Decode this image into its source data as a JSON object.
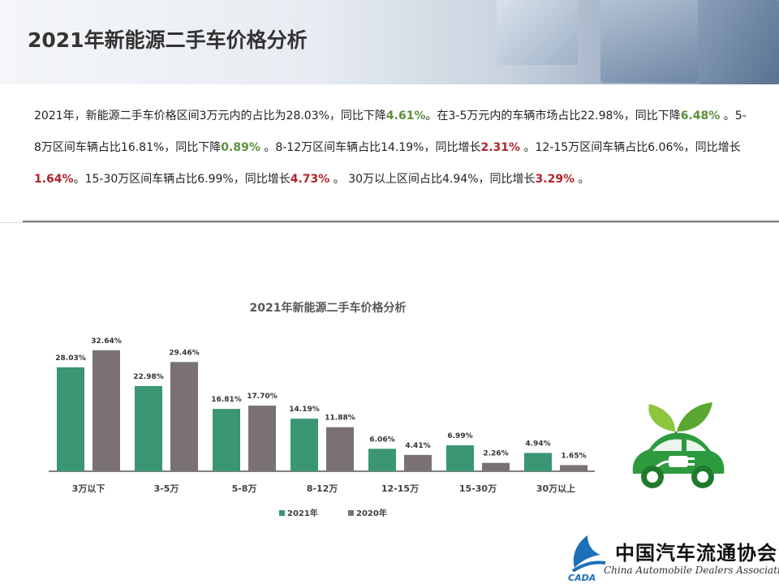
{
  "header": {
    "title": "2021年新能源二手车价格分析"
  },
  "description": [
    {
      "t": "2021年，新能源二手车价格区间3万元内的占比为28.03%，同比下降",
      "c": ""
    },
    {
      "t": "4.61%",
      "c": "g"
    },
    {
      "t": "。在3-5万元内的车辆市场占比22.98%，同比下降",
      "c": ""
    },
    {
      "t": "6.48%",
      "c": "g"
    },
    {
      "t": " 。5-8万区间车辆占比16.81%，同比下降",
      "c": ""
    },
    {
      "t": "0.89%",
      "c": "g"
    },
    {
      "t": " 。8-12万区间车辆占比14.19%，同比增长",
      "c": ""
    },
    {
      "t": "2.31%",
      "c": "r"
    },
    {
      "t": " 。12-15万区间车辆占比6.06%，同比增长",
      "c": ""
    },
    {
      "t": "1.64%",
      "c": "r"
    },
    {
      "t": "。15-30万区间车辆占比6.99%，同比增长",
      "c": ""
    },
    {
      "t": "4.73%",
      "c": "r"
    },
    {
      "t": " 。 30万以上区间占比4.94%，同比增长",
      "c": ""
    },
    {
      "t": "3.29%",
      "c": "r"
    },
    {
      "t": " 。",
      "c": ""
    }
  ],
  "chart_data": {
    "type": "bar",
    "title": "2021年新能源二手车价格分析",
    "categories": [
      "3万以下",
      "3-5万",
      "5-8万",
      "8-12万",
      "12-15万",
      "15-30万",
      "30万以上"
    ],
    "series": [
      {
        "name": "2021年",
        "color": "#3a9673",
        "values": [
          28.03,
          22.98,
          16.81,
          14.19,
          6.06,
          6.99,
          4.94
        ]
      },
      {
        "name": "2020年",
        "color": "#7a7272",
        "values": [
          32.64,
          29.46,
          17.7,
          11.88,
          4.41,
          2.26,
          1.65
        ]
      }
    ],
    "value_suffix": "%",
    "ylim": [
      0,
      35
    ],
    "grid": false,
    "legend": "bottom"
  },
  "logo": {
    "name": "中国汽车流通协会",
    "english": "China Automobile Dealers Association",
    "abbr": "CADA"
  }
}
